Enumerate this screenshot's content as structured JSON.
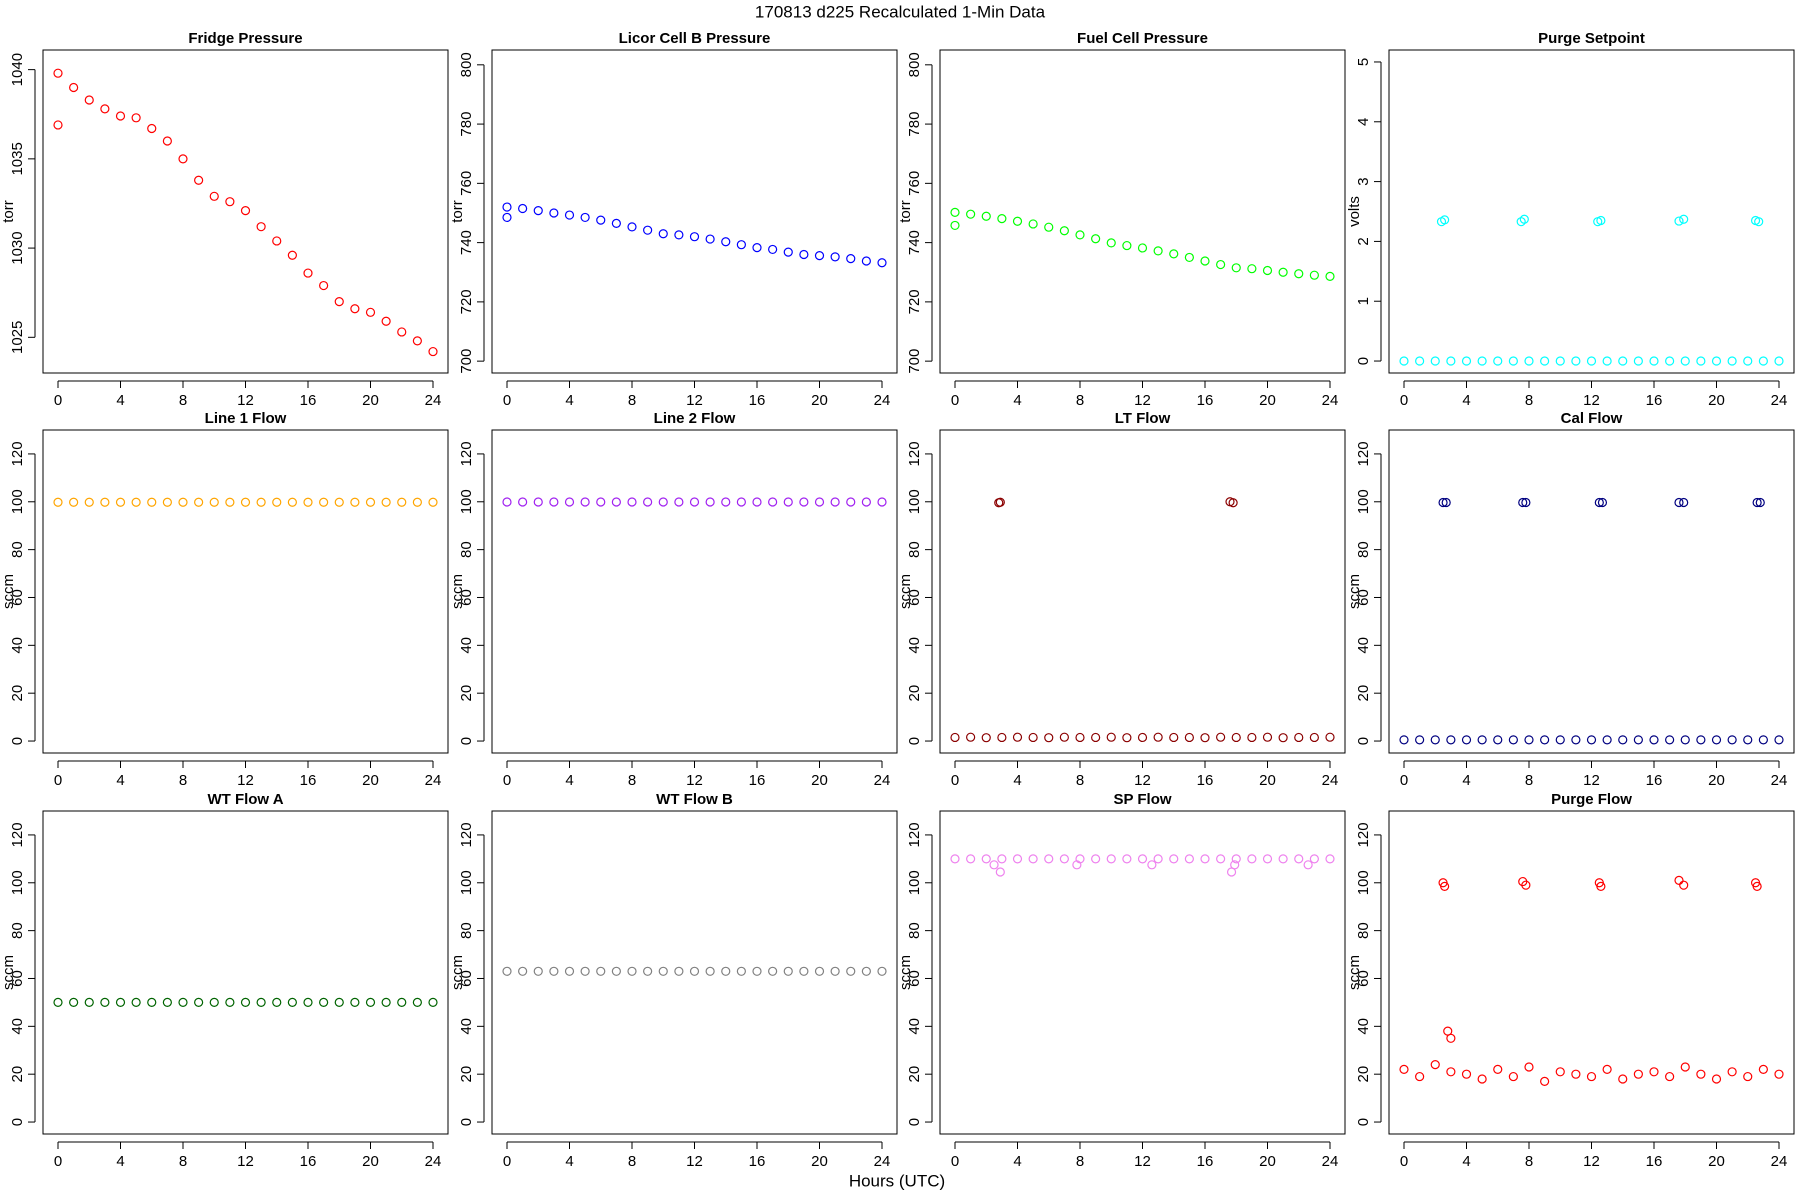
{
  "page_title": "170813   d225   Recalculated 1-Min Data",
  "x_label": "Hours (UTC)",
  "chart_data": [
    {
      "type": "scatter",
      "title": "Fridge Pressure",
      "y_label": "torr",
      "color": "#ff0000",
      "xlim": [
        -0.96,
        24.96
      ],
      "xticks": [
        0,
        4,
        8,
        12,
        16,
        20,
        24
      ],
      "ylim": [
        1023.0,
        1041.1
      ],
      "yticks": [
        1025,
        1030,
        1035,
        1040
      ],
      "x": [
        0,
        1,
        2,
        3,
        4,
        5,
        6,
        7,
        8,
        9,
        10,
        11,
        12,
        13,
        14,
        15,
        16,
        17,
        18,
        19,
        20,
        21,
        22,
        23,
        24,
        0
      ],
      "values": [
        1039.8,
        1039,
        1038.3,
        1037.8,
        1037.4,
        1037.3,
        1036.7,
        1036,
        1035,
        1033.8,
        1032.9,
        1032.6,
        1032.1,
        1031.2,
        1030.4,
        1029.6,
        1028.6,
        1027.9,
        1027,
        1026.6,
        1026.4,
        1025.9,
        1025.3,
        1024.8,
        1024.2,
        1036.9
      ]
    },
    {
      "type": "scatter",
      "title": "Licor Cell B Pressure",
      "y_label": "torr",
      "color": "#0000ff",
      "xlim": [
        -0.96,
        24.96
      ],
      "xticks": [
        0,
        4,
        8,
        12,
        16,
        20,
        24
      ],
      "ylim": [
        696,
        805
      ],
      "yticks": [
        700,
        720,
        740,
        760,
        780,
        800
      ],
      "x": [
        0,
        1,
        2,
        3,
        4,
        5,
        6,
        7,
        8,
        9,
        10,
        11,
        12,
        13,
        14,
        15,
        16,
        17,
        18,
        19,
        20,
        21,
        22,
        23,
        24,
        0
      ],
      "values": [
        752,
        751.5,
        750.8,
        750,
        749.3,
        748.5,
        747.6,
        746.5,
        745.3,
        744.2,
        743,
        742.6,
        742,
        741.2,
        740.3,
        739.3,
        738.3,
        737.7,
        736.8,
        736,
        735.6,
        735.2,
        734.6,
        733.8,
        733.2,
        748.5
      ]
    },
    {
      "type": "scatter",
      "title": "Fuel Cell Pressure",
      "y_label": "torr",
      "color": "#00ff00",
      "xlim": [
        -0.96,
        24.96
      ],
      "xticks": [
        0,
        4,
        8,
        12,
        16,
        20,
        24
      ],
      "ylim": [
        696,
        805
      ],
      "yticks": [
        700,
        720,
        740,
        760,
        780,
        800
      ],
      "x": [
        0,
        1,
        2,
        3,
        4,
        5,
        6,
        7,
        8,
        9,
        10,
        11,
        12,
        13,
        14,
        15,
        16,
        17,
        18,
        19,
        20,
        21,
        22,
        23,
        24,
        0
      ],
      "values": [
        750.2,
        749.6,
        748.9,
        748.1,
        747.2,
        746.3,
        745.2,
        744,
        742.6,
        741.3,
        739.9,
        739,
        738.2,
        737.2,
        736.2,
        735,
        733.8,
        732.6,
        731.5,
        731.2,
        730.6,
        730,
        729.5,
        729,
        728.6,
        745.8
      ]
    },
    {
      "type": "scatter",
      "title": "Purge Setpoint",
      "y_label": "volts",
      "color": "#00ffff",
      "xlim": [
        -0.96,
        24.96
      ],
      "xticks": [
        0,
        4,
        8,
        12,
        16,
        20,
        24
      ],
      "ylim": [
        -0.2,
        5.2
      ],
      "yticks": [
        0,
        1,
        2,
        3,
        4,
        5
      ],
      "x": [
        0,
        1,
        2,
        3,
        4,
        5,
        6,
        7,
        8,
        9,
        10,
        11,
        12,
        13,
        14,
        15,
        16,
        17,
        18,
        19,
        20,
        21,
        22,
        23,
        24,
        2.4,
        2.6,
        7.5,
        7.7,
        12.4,
        12.6,
        17.6,
        17.9,
        22.5,
        22.7
      ],
      "values": [
        0,
        0,
        0,
        0,
        0,
        0,
        0,
        0,
        0,
        0,
        0,
        0,
        0,
        0,
        0,
        0,
        0,
        0,
        0,
        0,
        0,
        0,
        0,
        0,
        0,
        2.33,
        2.36,
        2.33,
        2.37,
        2.33,
        2.35,
        2.34,
        2.37,
        2.35,
        2.33
      ]
    },
    {
      "type": "scatter",
      "title": "Line 1 Flow",
      "y_label": "sccm",
      "color": "#ffa500",
      "xlim": [
        -0.96,
        24.96
      ],
      "xticks": [
        0,
        4,
        8,
        12,
        16,
        20,
        24
      ],
      "ylim": [
        -5,
        130
      ],
      "yticks": [
        0,
        20,
        40,
        60,
        80,
        100,
        120
      ],
      "x": [
        0,
        1,
        2,
        3,
        4,
        5,
        6,
        7,
        8,
        9,
        10,
        11,
        12,
        13,
        14,
        15,
        16,
        17,
        18,
        19,
        20,
        21,
        22,
        23,
        24
      ],
      "values": [
        99.8,
        99.8,
        99.8,
        99.8,
        99.8,
        99.8,
        99.8,
        99.8,
        99.8,
        99.8,
        99.8,
        99.8,
        99.8,
        99.8,
        99.8,
        99.8,
        99.8,
        99.8,
        99.8,
        99.8,
        99.8,
        99.8,
        99.8,
        99.8,
        99.8
      ]
    },
    {
      "type": "scatter",
      "title": "Line 2 Flow",
      "y_label": "sccm",
      "color": "#a020f0",
      "xlim": [
        -0.96,
        24.96
      ],
      "xticks": [
        0,
        4,
        8,
        12,
        16,
        20,
        24
      ],
      "ylim": [
        -5,
        130
      ],
      "yticks": [
        0,
        20,
        40,
        60,
        80,
        100,
        120
      ],
      "x": [
        0,
        1,
        2,
        3,
        4,
        5,
        6,
        7,
        8,
        9,
        10,
        11,
        12,
        13,
        14,
        15,
        16,
        17,
        18,
        19,
        20,
        21,
        22,
        23,
        24
      ],
      "values": [
        99.9,
        99.9,
        99.9,
        99.9,
        99.9,
        99.9,
        99.9,
        99.9,
        99.9,
        99.9,
        99.9,
        99.9,
        99.9,
        99.9,
        99.9,
        99.9,
        99.9,
        99.9,
        99.9,
        99.9,
        99.9,
        99.9,
        99.9,
        99.9,
        99.9
      ]
    },
    {
      "type": "scatter",
      "title": "LT Flow",
      "y_label": "sccm",
      "color": "#8b0000",
      "xlim": [
        -0.96,
        24.96
      ],
      "xticks": [
        0,
        4,
        8,
        12,
        16,
        20,
        24
      ],
      "ylim": [
        -5,
        130
      ],
      "yticks": [
        0,
        20,
        40,
        60,
        80,
        100,
        120
      ],
      "x": [
        0,
        1,
        2,
        3,
        4,
        5,
        6,
        7,
        8,
        9,
        10,
        11,
        12,
        13,
        14,
        15,
        16,
        17,
        18,
        19,
        20,
        21,
        22,
        23,
        24,
        2.8,
        2.9,
        17.6,
        17.8
      ],
      "values": [
        1.5,
        1.6,
        1.4,
        1.5,
        1.6,
        1.5,
        1.4,
        1.6,
        1.5,
        1.5,
        1.6,
        1.4,
        1.5,
        1.6,
        1.5,
        1.5,
        1.4,
        1.6,
        1.5,
        1.5,
        1.6,
        1.4,
        1.5,
        1.5,
        1.6,
        99.6,
        99.8,
        100,
        99.6
      ]
    },
    {
      "type": "scatter",
      "title": "Cal Flow",
      "y_label": "sccm",
      "color": "#000080",
      "xlim": [
        -0.96,
        24.96
      ],
      "xticks": [
        0,
        4,
        8,
        12,
        16,
        20,
        24
      ],
      "ylim": [
        -5,
        130
      ],
      "yticks": [
        0,
        20,
        40,
        60,
        80,
        100,
        120
      ],
      "x": [
        0,
        1,
        2,
        3,
        4,
        5,
        6,
        7,
        8,
        9,
        10,
        11,
        12,
        13,
        14,
        15,
        16,
        17,
        18,
        19,
        20,
        21,
        22,
        23,
        24,
        2.5,
        2.7,
        7.6,
        7.8,
        12.5,
        12.7,
        17.6,
        17.9,
        22.6,
        22.8
      ],
      "values": [
        0.5,
        0.5,
        0.5,
        0.5,
        0.5,
        0.5,
        0.5,
        0.5,
        0.5,
        0.5,
        0.5,
        0.5,
        0.5,
        0.5,
        0.5,
        0.5,
        0.5,
        0.5,
        0.5,
        0.5,
        0.5,
        0.5,
        0.5,
        0.5,
        0.5,
        99.7,
        99.7,
        99.7,
        99.7,
        99.7,
        99.7,
        99.7,
        99.7,
        99.7,
        99.7
      ]
    },
    {
      "type": "scatter",
      "title": "WT Flow A",
      "y_label": "sccm",
      "color": "#006400",
      "xlim": [
        -0.96,
        24.96
      ],
      "xticks": [
        0,
        4,
        8,
        12,
        16,
        20,
        24
      ],
      "ylim": [
        -5,
        130
      ],
      "yticks": [
        0,
        20,
        40,
        60,
        80,
        100,
        120
      ],
      "x": [
        0,
        1,
        2,
        3,
        4,
        5,
        6,
        7,
        8,
        9,
        10,
        11,
        12,
        13,
        14,
        15,
        16,
        17,
        18,
        19,
        20,
        21,
        22,
        23,
        24
      ],
      "values": [
        50,
        50,
        50,
        50,
        50,
        50,
        50,
        50,
        50,
        50,
        50,
        50,
        50,
        50,
        50,
        50,
        50,
        50,
        50,
        50,
        50,
        50,
        50,
        50,
        50
      ]
    },
    {
      "type": "scatter",
      "title": "WT Flow B",
      "y_label": "sccm",
      "color": "#808080",
      "xlim": [
        -0.96,
        24.96
      ],
      "xticks": [
        0,
        4,
        8,
        12,
        16,
        20,
        24
      ],
      "ylim": [
        -5,
        130
      ],
      "yticks": [
        0,
        20,
        40,
        60,
        80,
        100,
        120
      ],
      "x": [
        0,
        1,
        2,
        3,
        4,
        5,
        6,
        7,
        8,
        9,
        10,
        11,
        12,
        13,
        14,
        15,
        16,
        17,
        18,
        19,
        20,
        21,
        22,
        23,
        24
      ],
      "values": [
        63,
        63,
        63,
        63,
        63,
        63,
        63,
        63,
        63,
        63,
        63,
        63,
        63,
        63,
        63,
        63,
        63,
        63,
        63,
        63,
        63,
        63,
        63,
        63,
        63
      ]
    },
    {
      "type": "scatter",
      "title": "SP Flow",
      "y_label": "sccm",
      "color": "#ee82ee",
      "xlim": [
        -0.96,
        24.96
      ],
      "xticks": [
        0,
        4,
        8,
        12,
        16,
        20,
        24
      ],
      "ylim": [
        -5,
        130
      ],
      "yticks": [
        0,
        20,
        40,
        60,
        80,
        100,
        120
      ],
      "x": [
        0,
        1,
        2,
        3,
        4,
        5,
        6,
        7,
        8,
        9,
        10,
        11,
        12,
        13,
        14,
        15,
        16,
        17,
        18,
        19,
        20,
        21,
        22,
        23,
        24,
        2.5,
        2.9,
        7.8,
        12.6,
        17.7,
        17.9,
        22.6
      ],
      "values": [
        110,
        110,
        110,
        110,
        110,
        110,
        110,
        110,
        110,
        110,
        110,
        110,
        110,
        110,
        110,
        110,
        110,
        110,
        110,
        110,
        110,
        110,
        110,
        110,
        110,
        107.5,
        104.5,
        107.5,
        107.5,
        104.5,
        107.5,
        107.5
      ]
    },
    {
      "type": "scatter",
      "title": "Purge Flow",
      "y_label": "sccm",
      "color": "#ff0000",
      "xlim": [
        -0.96,
        24.96
      ],
      "xticks": [
        0,
        4,
        8,
        12,
        16,
        20,
        24
      ],
      "ylim": [
        -5,
        130
      ],
      "yticks": [
        0,
        20,
        40,
        60,
        80,
        100,
        120
      ],
      "x": [
        0,
        1,
        2,
        3,
        4,
        5,
        6,
        7,
        8,
        9,
        10,
        11,
        12,
        13,
        14,
        15,
        16,
        17,
        18,
        19,
        20,
        21,
        22,
        23,
        24,
        2.5,
        2.6,
        7.6,
        7.8,
        12.5,
        12.6,
        17.6,
        17.9,
        22.5,
        22.6,
        2.8,
        3.0
      ],
      "values": [
        22,
        19,
        24,
        21,
        20,
        18,
        22,
        19,
        23,
        17,
        21,
        20,
        19,
        22,
        18,
        20,
        21,
        19,
        23,
        20,
        18,
        21,
        19,
        22,
        20,
        100,
        98.5,
        100.5,
        99,
        100,
        98.5,
        101,
        99,
        100,
        98.5,
        38,
        35
      ]
    }
  ]
}
